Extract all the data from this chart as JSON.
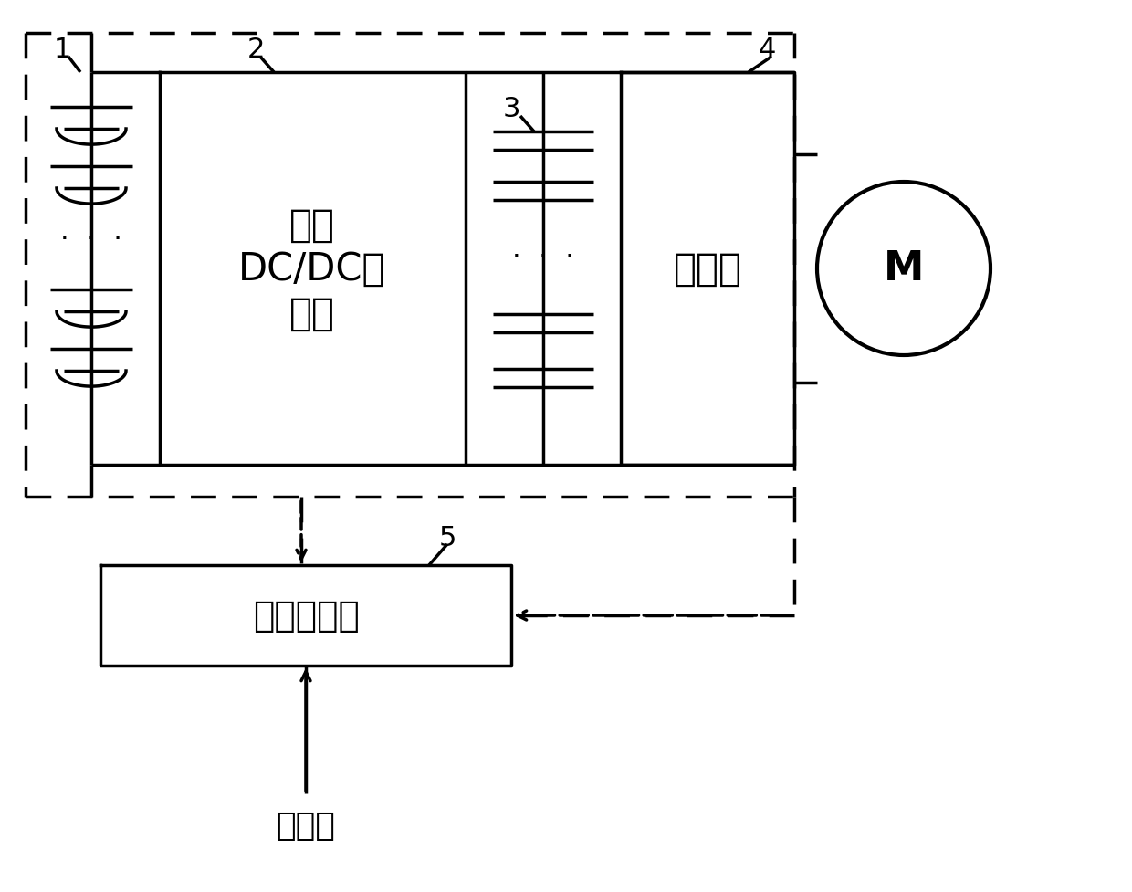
{
  "bg_color": "#ffffff",
  "line_color": "#000000",
  "dashed_color": "#000000",
  "fig_width": 12.4,
  "fig_height": 9.78,
  "label_1": "1",
  "label_2": "2",
  "label_3": "3",
  "label_4": "4",
  "label_5": "5",
  "text_dcdc": "双向\nDC/DC变\n换器",
  "text_inverter": "逆变器",
  "text_controller": "整车控制器",
  "text_sensor": "传感器",
  "text_M": "M"
}
